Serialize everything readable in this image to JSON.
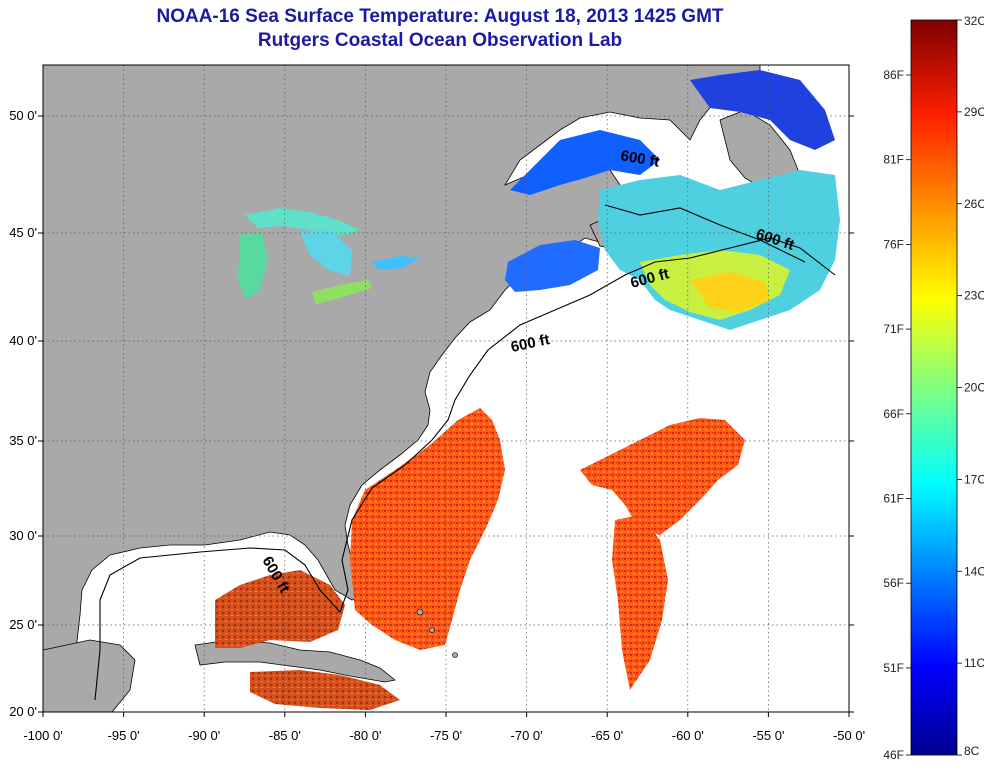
{
  "header": {
    "title": "NOAA-16 Sea Surface Temperature:  August 18, 2013 1425 GMT",
    "subtitle": "Rutgers Coastal Ocean Observation Lab"
  },
  "map": {
    "lon_range": [
      -100,
      -50
    ],
    "lat_range": [
      20,
      52.5
    ],
    "lon_ticks": [
      "-100 0'",
      "-95 0'",
      "-90 0'",
      "-85 0'",
      "-80 0'",
      "-75 0'",
      "-70 0'",
      "-65 0'",
      "-60 0'",
      "-55 0'",
      "-50 0'"
    ],
    "lat_ticks": [
      "20 0'",
      "25 0'",
      "30 0'",
      "35 0'",
      "40 0'",
      "45 0'",
      "50 0'"
    ],
    "contour_labels": [
      "600 ft",
      "600 ft",
      "600 ft",
      "600 ft",
      "600 ft"
    ],
    "land_color": "#a9a9a9",
    "no_data_color": "#ffffff"
  },
  "colorbar": {
    "celsius_labels": [
      "32C",
      "29C",
      "26C",
      "23C",
      "20C",
      "17C",
      "14C",
      "11C",
      "8C"
    ],
    "fahrenheit_labels": [
      "86F",
      "81F",
      "76F",
      "71F",
      "66F",
      "61F",
      "56F",
      "51F",
      "46F"
    ],
    "colors": [
      "#7f0000",
      "#ff0000",
      "#ff8000",
      "#ffff00",
      "#80ff80",
      "#00ffff",
      "#0080ff",
      "#0000ff",
      "#00008f"
    ]
  }
}
